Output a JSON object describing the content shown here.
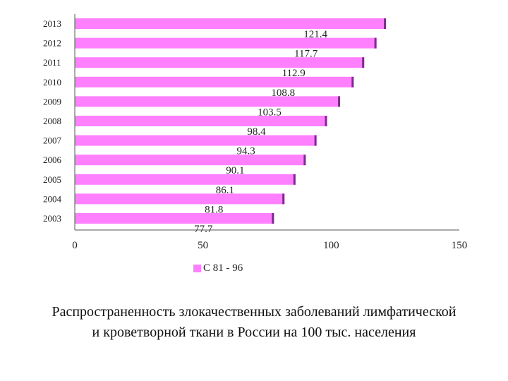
{
  "chart_data": {
    "type": "bar",
    "orientation": "horizontal",
    "categories": [
      "2013",
      "2012",
      "2011",
      "2010",
      "2009",
      "2008",
      "2007",
      "2006",
      "2005",
      "2004",
      "2003"
    ],
    "series": [
      {
        "name": "C 81 - 96",
        "values": [
          121.4,
          117.7,
          112.9,
          108.8,
          103.5,
          98.4,
          94.3,
          90.1,
          86.1,
          81.8,
          77.7
        ]
      }
    ],
    "xlim": [
      0,
      150
    ],
    "xticks": [
      "0",
      "50",
      "100",
      "150"
    ],
    "legend_position": "bottom",
    "grid": false,
    "bar_color": "#ff80ff",
    "bar_edge_color": "#7a2c8c"
  },
  "caption": {
    "line1": "Распространенность злокачественных заболеваний лимфатической",
    "line2": "и кроветворной ткани  в России на 100 тыс. населения"
  }
}
